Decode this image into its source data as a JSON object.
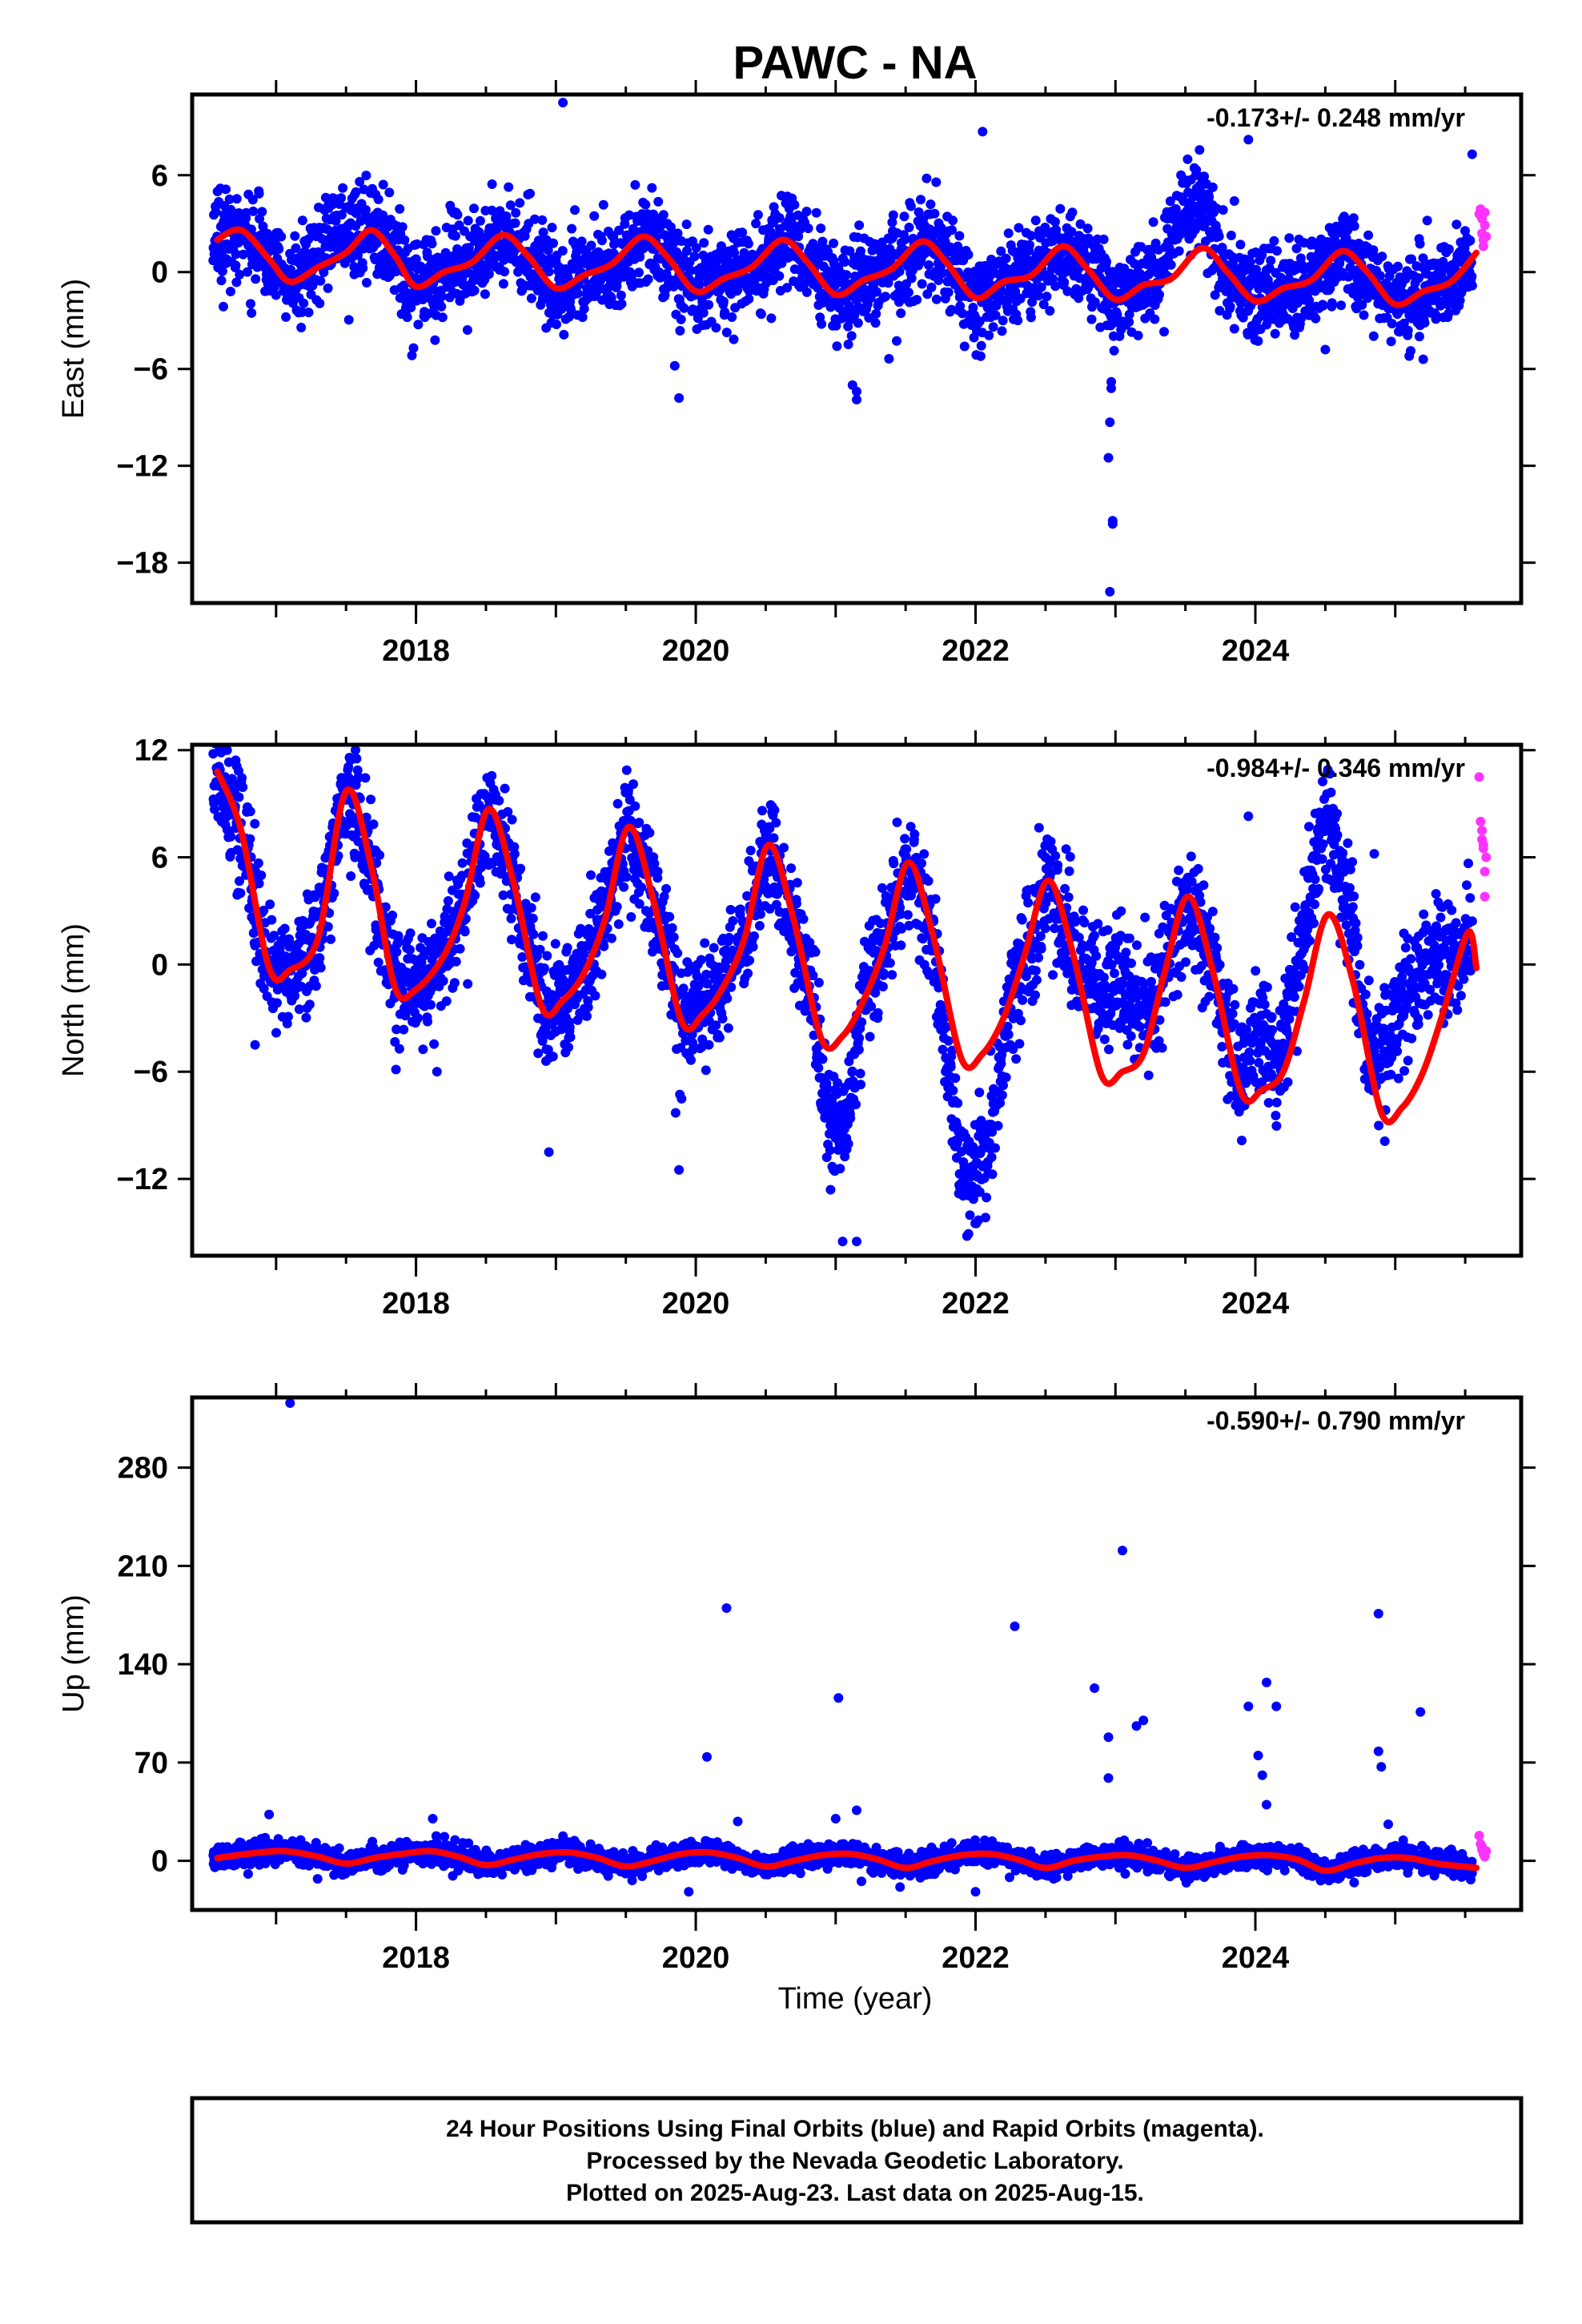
{
  "title": "PAWC - NA",
  "colors": {
    "final": "#0000ff",
    "rapid": "#ff33ff",
    "fit": "#ff0000",
    "frame": "#000000"
  },
  "xlabel": "Time (year)",
  "x_ticks": [
    2018,
    2020,
    2022,
    2024
  ],
  "footer": [
    "24 Hour Positions Using Final Orbits (blue) and Rapid Orbits (magenta).",
    "Processed by the Nevada Geodetic Laboratory.",
    "Plotted on 2025-Aug-23. Last data on 2025-Aug-15."
  ],
  "chart_data": [
    {
      "type": "scatter",
      "ylabel": "East (mm)",
      "rate_label": "-0.173+/- 0.248 mm/yr",
      "xlim": [
        2016.4,
        2025.9
      ],
      "ylim": [
        -20.5,
        11
      ],
      "y_ticks": [
        6,
        0,
        -6,
        -12,
        -18
      ],
      "trend": {
        "x": [
          2016.58,
          2016.75,
          2016.95,
          2017.1,
          2017.3,
          2017.5,
          2017.68,
          2017.85,
          2018.0,
          2018.2,
          2018.4,
          2018.62,
          2018.8,
          2019.0,
          2019.2,
          2019.4,
          2019.62,
          2019.8,
          2020.0,
          2020.2,
          2020.4,
          2020.62,
          2020.8,
          2021.0,
          2021.2,
          2021.4,
          2021.62,
          2021.8,
          2022.0,
          2022.2,
          2022.4,
          2022.62,
          2022.8,
          2023.0,
          2023.2,
          2023.4,
          2023.62,
          2023.8,
          2024.0,
          2024.2,
          2024.4,
          2024.62,
          2024.8,
          2025.0,
          2025.2,
          2025.4,
          2025.58
        ],
        "y": [
          2.0,
          2.6,
          0.8,
          -0.6,
          0.3,
          1.2,
          2.6,
          1.0,
          -0.9,
          0.0,
          0.6,
          2.3,
          1.0,
          -1.0,
          -0.2,
          0.5,
          2.2,
          0.9,
          -1.2,
          -0.4,
          0.3,
          2.0,
          0.6,
          -1.4,
          -0.5,
          0.2,
          1.9,
          0.5,
          -1.6,
          -0.6,
          -0.2,
          1.6,
          0.2,
          -1.7,
          -0.8,
          -0.4,
          1.5,
          0.0,
          -1.8,
          -1.0,
          -0.5,
          1.3,
          0.0,
          -2.0,
          -1.2,
          -0.6,
          1.2
        ]
      },
      "final": {
        "n": 3200,
        "x0": 2016.55,
        "x1": 2025.55,
        "spread": 1.4,
        "anomalies": [
          {
            "x0": 2023.3,
            "x1": 2023.75,
            "dy": 3.5
          },
          {
            "x0": 2017.2,
            "x1": 2017.6,
            "dy": 1.5
          }
        ],
        "outliers": [
          [
            2019.05,
            10.5
          ],
          [
            2022.05,
            8.7
          ],
          [
            2021.65,
            5.8
          ],
          [
            2023.95,
            8.2
          ],
          [
            2025.55,
            7.3
          ],
          [
            2018.8,
            4.8
          ],
          [
            2023.85,
            4.4
          ],
          [
            2019.88,
            -7.8
          ],
          [
            2019.85,
            -5.8
          ],
          [
            2021.15,
            -7.9
          ],
          [
            2021.15,
            -7.4
          ],
          [
            2021.12,
            -7.0
          ],
          [
            2022.96,
            -9.3
          ],
          [
            2022.97,
            -7.2
          ],
          [
            2022.97,
            -6.8
          ],
          [
            2022.98,
            -15.4
          ],
          [
            2022.98,
            -15.6
          ],
          [
            2022.96,
            -19.8
          ],
          [
            2022.95,
            -11.5
          ],
          [
            2024.5,
            -4.8
          ],
          [
            2025.1,
            -5.2
          ],
          [
            2025.2,
            -5.4
          ]
        ]
      },
      "rapid": {
        "x": [
          2025.6,
          2025.61,
          2025.62,
          2025.62,
          2025.63,
          2025.63,
          2025.64,
          2025.64,
          2025.65
        ],
        "y": [
          3.6,
          3.9,
          3.3,
          2.4,
          2.0,
          1.6,
          2.9,
          3.7,
          2.2
        ]
      }
    },
    {
      "type": "scatter",
      "ylabel": "North (mm)",
      "rate_label": "-0.984+/- 0.346 mm/yr",
      "xlim": [
        2016.4,
        2025.9
      ],
      "ylim": [
        -16.3,
        12.3
      ],
      "y_ticks": [
        12,
        6,
        0,
        -6,
        -12
      ],
      "trend": {
        "x": [
          2016.58,
          2016.75,
          2016.95,
          2017.1,
          2017.3,
          2017.5,
          2017.68,
          2017.85,
          2018.0,
          2018.2,
          2018.35,
          2018.52,
          2018.7,
          2018.9,
          2019.05,
          2019.2,
          2019.35,
          2019.52,
          2019.7,
          2019.9,
          2020.05,
          2020.2,
          2020.35,
          2020.52,
          2020.7,
          2020.9,
          2021.05,
          2021.2,
          2021.35,
          2021.52,
          2021.7,
          2021.9,
          2022.05,
          2022.2,
          2022.35,
          2022.52,
          2022.7,
          2022.9,
          2023.05,
          2023.2,
          2023.35,
          2023.52,
          2023.7,
          2023.9,
          2024.05,
          2024.2,
          2024.35,
          2024.52,
          2024.7,
          2024.9,
          2025.05,
          2025.2,
          2025.35,
          2025.52,
          2025.58
        ],
        "y": [
          10.8,
          7.5,
          -0.2,
          -0.3,
          1.5,
          9.7,
          5.5,
          -1.3,
          -1.4,
          0.5,
          3.5,
          8.7,
          4.5,
          -2.4,
          -2.0,
          -0.5,
          2.5,
          7.7,
          3.5,
          -3.2,
          -2.8,
          -1.2,
          1.5,
          6.7,
          2.5,
          -4.2,
          -4.0,
          -2.0,
          1.0,
          5.7,
          1.5,
          -5.3,
          -5.0,
          -3.0,
          0.5,
          4.7,
          0.5,
          -6.2,
          -6.0,
          -5.0,
          -0.5,
          3.8,
          -0.5,
          -7.2,
          -7.0,
          -6.0,
          -2.0,
          2.8,
          -1.0,
          -8.3,
          -8.0,
          -6.0,
          -2.5,
          1.8,
          -0.2
        ]
      },
      "final": {
        "n": 3300,
        "x0": 2016.55,
        "x1": 2025.55,
        "spread": 1.6,
        "anomalies": [
          {
            "x0": 2020.85,
            "x1": 2021.2,
            "dy": -5.5
          },
          {
            "x0": 2021.7,
            "x1": 2022.25,
            "dy": -6.5
          },
          {
            "x0": 2022.7,
            "x1": 2023.3,
            "dy": 5.0
          },
          {
            "x0": 2023.9,
            "x1": 2024.15,
            "dy": 3.0
          },
          {
            "x0": 2024.15,
            "x1": 2024.8,
            "dy": 5.5
          },
          {
            "x0": 2024.8,
            "x1": 2025.45,
            "dy": 6.0
          }
        ],
        "outliers": [
          [
            2016.85,
            -4.5
          ],
          [
            2018.15,
            -6.0
          ],
          [
            2018.95,
            -10.5
          ],
          [
            2019.88,
            -11.5
          ],
          [
            2021.05,
            -15.5
          ],
          [
            2021.15,
            -15.5
          ],
          [
            2023.95,
            8.3
          ],
          [
            2024.85,
            6.2
          ],
          [
            2022.5,
            6.0
          ],
          [
            2016.65,
            12.0
          ],
          [
            2021.3,
            -3.0
          ]
        ]
      },
      "rapid": {
        "x": [
          2025.6,
          2025.61,
          2025.62,
          2025.62,
          2025.63,
          2025.63,
          2025.64,
          2025.64,
          2025.65
        ],
        "y": [
          10.5,
          8.0,
          7.5,
          7.0,
          6.7,
          6.5,
          5.2,
          3.8,
          6.0
        ]
      }
    },
    {
      "type": "scatter",
      "ylabel": "Up (mm)",
      "rate_label": "-0.590+/- 0.790 mm/yr",
      "xlabel": "Time (year)",
      "xlim": [
        2016.4,
        2025.9
      ],
      "ylim": [
        -35,
        330
      ],
      "y_ticks": [
        280,
        210,
        140,
        70,
        0
      ],
      "trend": {
        "x": [
          2016.58,
          2016.8,
          2017.05,
          2017.3,
          2017.5,
          2017.7,
          2017.9,
          2018.1,
          2018.3,
          2018.5,
          2018.7,
          2018.9,
          2019.1,
          2019.3,
          2019.5,
          2019.7,
          2019.9,
          2020.1,
          2020.3,
          2020.5,
          2020.7,
          2020.9,
          2021.1,
          2021.3,
          2021.5,
          2021.7,
          2021.9,
          2022.1,
          2022.3,
          2022.5,
          2022.7,
          2022.9,
          2023.1,
          2023.3,
          2023.5,
          2023.7,
          2023.9,
          2024.1,
          2024.3,
          2024.5,
          2024.7,
          2024.9,
          2025.1,
          2025.3,
          2025.58
        ],
        "y": [
          2,
          5,
          7,
          3,
          -2,
          2,
          5,
          7,
          3,
          -3,
          1,
          5,
          6,
          2,
          -4,
          0,
          5,
          6,
          2,
          -4,
          0,
          4,
          5,
          1,
          -5,
          0,
          4,
          5,
          1,
          -5,
          0,
          3,
          4,
          0,
          -5,
          -1,
          3,
          4,
          1,
          -7,
          -2,
          2,
          2,
          -2,
          -5
        ]
      },
      "final": {
        "n": 3300,
        "x0": 2016.55,
        "x1": 2025.55,
        "spread": 4,
        "anomalies": [],
        "outliers": [
          [
            2017.1,
            326
          ],
          [
            2020.08,
            74
          ],
          [
            2020.22,
            180
          ],
          [
            2021.02,
            116
          ],
          [
            2022.28,
            167
          ],
          [
            2022.85,
            123
          ],
          [
            2022.95,
            88
          ],
          [
            2022.95,
            59
          ],
          [
            2023.05,
            221
          ],
          [
            2023.2,
            100
          ],
          [
            2023.15,
            96
          ],
          [
            2023.95,
            110
          ],
          [
            2024.02,
            75
          ],
          [
            2024.08,
            127
          ],
          [
            2024.05,
            61
          ],
          [
            2024.15,
            110
          ],
          [
            2024.88,
            176
          ],
          [
            2024.88,
            78
          ],
          [
            2024.9,
            67
          ],
          [
            2025.18,
            106
          ],
          [
            2024.08,
            40
          ],
          [
            2021.0,
            30
          ],
          [
            2020.3,
            28
          ],
          [
            2016.95,
            33
          ],
          [
            2018.12,
            30
          ],
          [
            2024.95,
            26
          ],
          [
            2021.15,
            36
          ],
          [
            2022.0,
            -22
          ],
          [
            2019.95,
            -22
          ]
        ]
      },
      "rapid": {
        "x": [
          2025.6,
          2025.61,
          2025.62,
          2025.62,
          2025.63,
          2025.63,
          2025.64,
          2025.64,
          2025.65
        ],
        "y": [
          18,
          12,
          10,
          8,
          6,
          5,
          4,
          3,
          7
        ]
      }
    }
  ]
}
